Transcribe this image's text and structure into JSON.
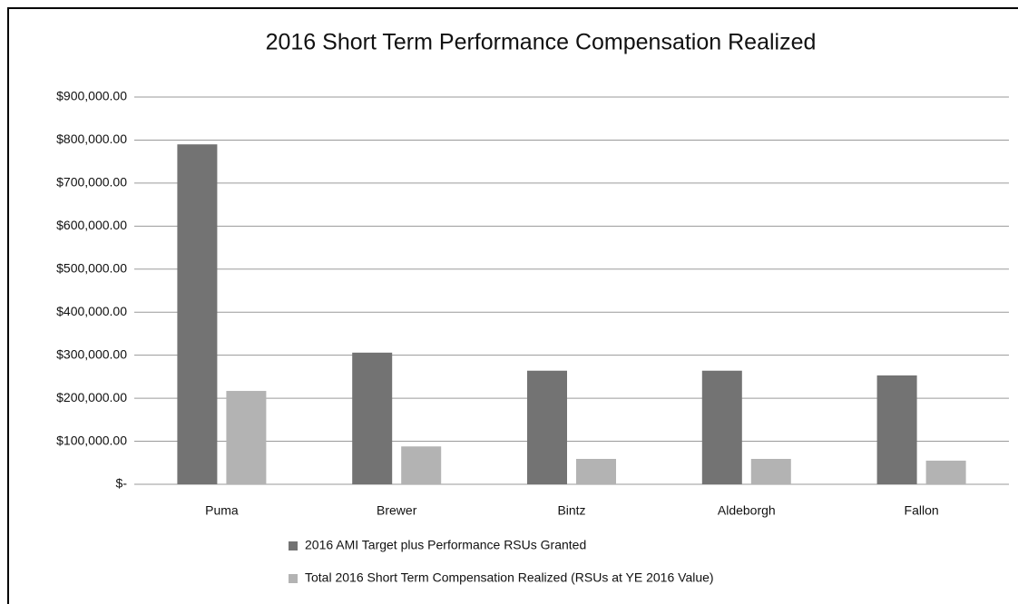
{
  "chart_data": {
    "type": "bar",
    "title": "2016 Short Term Performance Compensation Realized",
    "categories": [
      "Puma",
      "Brewer",
      "Bintz",
      "Aldeborgh",
      "Fallon"
    ],
    "series": [
      {
        "name": "2016 AMI Target plus Performance RSUs Granted",
        "color": "#737373",
        "values": [
          790000,
          306000,
          264000,
          264000,
          253000
        ]
      },
      {
        "name": "Total 2016 Short Term Compensation Realized (RSUs at YE 2016 Value)",
        "color": "#b3b3b3",
        "values": [
          217000,
          88000,
          59000,
          59000,
          55000
        ]
      }
    ],
    "ylim": [
      0,
      900000
    ],
    "yticks": [
      {
        "value": 0,
        "label": "$-"
      },
      {
        "value": 100000,
        "label": "$100,000.00"
      },
      {
        "value": 200000,
        "label": "$200,000.00"
      },
      {
        "value": 300000,
        "label": "$300,000.00"
      },
      {
        "value": 400000,
        "label": "$400,000.00"
      },
      {
        "value": 500000,
        "label": "$500,000.00"
      },
      {
        "value": 600000,
        "label": "$600,000.00"
      },
      {
        "value": 700000,
        "label": "$700,000.00"
      },
      {
        "value": 800000,
        "label": "$800,000.00"
      },
      {
        "value": 900000,
        "label": "$900,000.00"
      }
    ],
    "grid": true
  }
}
